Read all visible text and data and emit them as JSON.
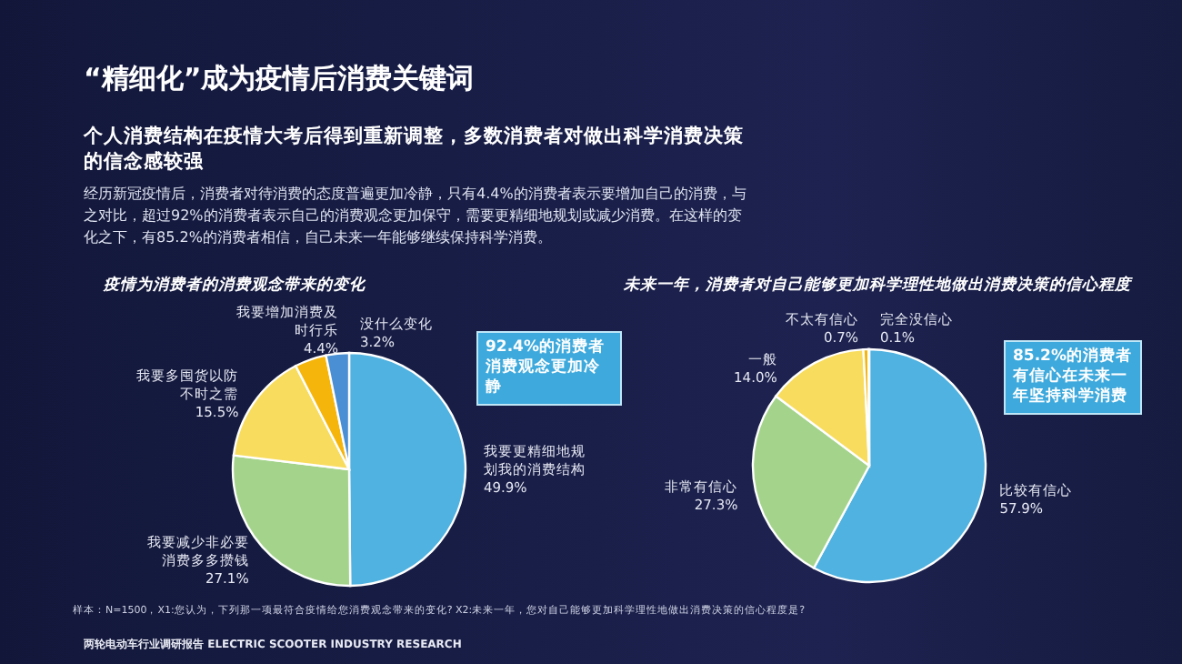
{
  "chart_data": [
    {
      "type": "other",
      "title": "“精细化”成为疫情后消费关键词",
      "subtitle": "个人消费结构在疫情大考后得到重新调整，多数消费者对做出科学消费决策的信念感较强",
      "annotations": [
        "经历新冠疫情后，消费者对待消费的态度普遍更加冷静，只有4.4%的消费者表示要增加自己的消费，与之对比，超过92%的消费者表示自己的消费观念更加保守，需要更精细地规划或减少消费。在这样的变化之下，有85.2%的消费者相信，自己未来一年能够继续保持科学消费。",
        "样本：N=1500，X1:您认为，下列那一项最符合疫情给您消费观念带来的变化? X2:未来一年，您对自己能够更加科学理性地做出消费决策的信心程度是?",
        "两轮电动车行业调研报告 ELECTRIC SCOOTER INDUSTRY RESEARCH"
      ]
    },
    {
      "type": "pie",
      "title": "疫情为消费者的消费观念带来的变化",
      "categories": [
        "我要更精细地规划我的消费结构",
        "我要减少非必要消费多多攒钱",
        "我要多囤货以防不时之需",
        "我要增加消费及时行乐",
        "没什么变化"
      ],
      "values": [
        49.9,
        27.1,
        15.5,
        4.4,
        3.2
      ],
      "value_labels": [
        "49.9%",
        "27.1%",
        "15.5%",
        "4.4%",
        "3.2%"
      ],
      "colors": [
        "#4fb2e0",
        "#a4d48c",
        "#f8dc5e",
        "#f5b50a",
        "#4a8fd4"
      ],
      "annotations": [
        "92.4%的消费者消费观念更加冷静"
      ]
    },
    {
      "type": "pie",
      "title": "未来一年，消费者对自己能够更加科学理性地做出消费决策的信心程度",
      "categories": [
        "比较有信心",
        "非常有信心",
        "一般",
        "不太有信心",
        "完全没信心"
      ],
      "values": [
        57.9,
        27.3,
        14.0,
        0.7,
        0.1
      ],
      "value_labels": [
        "57.9%",
        "27.3%",
        "14.0%",
        "0.7%",
        "0.1%"
      ],
      "colors": [
        "#4fb2e0",
        "#a4d48c",
        "#f8dc5e",
        "#f5b50a",
        "#4a8fd4"
      ],
      "annotations": [
        "85.2%的消费者有信心在未来一年坚持科学消费"
      ]
    }
  ]
}
